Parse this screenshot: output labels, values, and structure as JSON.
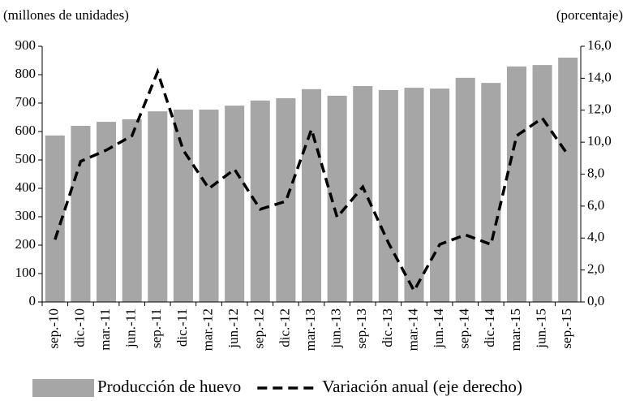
{
  "chart_data": {
    "type": "bar_line",
    "y_label": "(millones de unidades)",
    "y2_label": "(porcentaje)",
    "categories": [
      "sep.-10",
      "dic.-10",
      "mar.-11",
      "jun.-11",
      "sep.-11",
      "dic.-11",
      "mar.-12",
      "jun.-12",
      "sep.-12",
      "dic.-12",
      "mar.-13",
      "jun.-13",
      "sep.-13",
      "dic.-13",
      "mar.-14",
      "jun.-14",
      "sep.-14",
      "dic.-14",
      "mar.-15",
      "jun.-15",
      "sep.-15"
    ],
    "series": [
      {
        "name": "Producción de huevo",
        "color": "#a6a6a6",
        "kind": "bar",
        "axis": "y",
        "values": [
          586,
          620,
          634,
          643,
          671,
          677,
          677,
          691,
          709,
          717,
          749,
          726,
          760,
          746,
          754,
          751,
          789,
          771,
          829,
          834,
          860
        ]
      },
      {
        "name": "Variación anual (eje derecho)",
        "color": "#000000",
        "kind": "line",
        "axis": "y2",
        "values": [
          3.9,
          8.8,
          9.5,
          10.4,
          14.4,
          9.5,
          7.1,
          8.3,
          5.8,
          6.3,
          10.8,
          5.3,
          7.2,
          3.7,
          0.7,
          3.6,
          4.2,
          3.6,
          10.4,
          11.5,
          9.2
        ]
      }
    ],
    "ylim": [
      0,
      900
    ],
    "yticks": [
      0,
      100,
      200,
      300,
      400,
      500,
      600,
      700,
      800,
      900
    ],
    "y2lim": [
      0,
      16
    ],
    "y2ticks": [
      {
        "value": 0,
        "label": "0,0"
      },
      {
        "value": 2,
        "label": "2,0"
      },
      {
        "value": 4,
        "label": "4,0"
      },
      {
        "value": 6,
        "label": "6,0"
      },
      {
        "value": 8,
        "label": "8,0"
      },
      {
        "value": 10,
        "label": "10,0"
      },
      {
        "value": 12,
        "label": "12,0"
      },
      {
        "value": 14,
        "label": "14,0"
      },
      {
        "value": 16,
        "label": "16,0"
      }
    ],
    "legend": "bottom"
  }
}
